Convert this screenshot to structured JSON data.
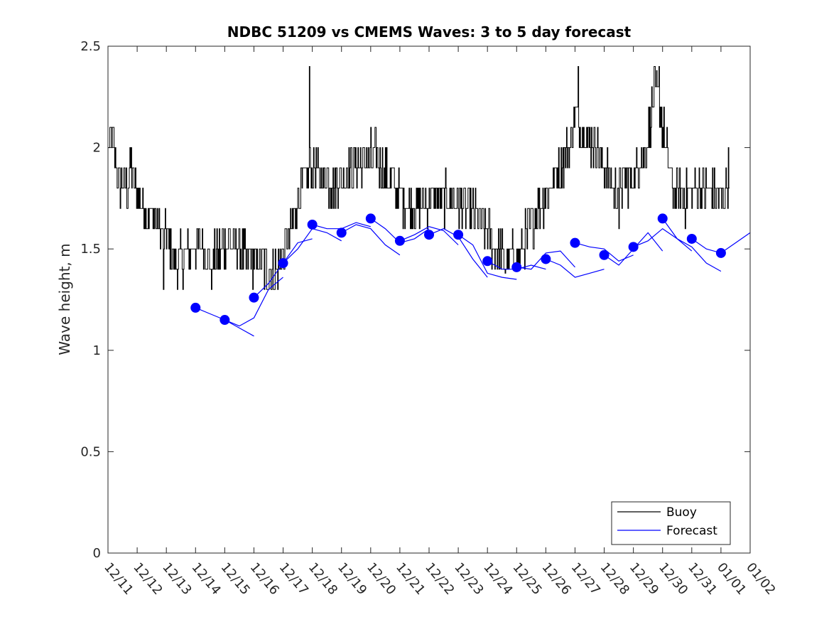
{
  "chart_data": {
    "type": "line",
    "title": "NDBC 51209 vs CMEMS Waves: 3 to 5 day forecast",
    "ylabel": "Wave height, m",
    "xlabel": "",
    "xlim": [
      0,
      22
    ],
    "ylim": [
      0,
      2.5
    ],
    "grid": false,
    "legend_position": "bottom-right",
    "yticks": [
      {
        "value": 0,
        "label": "0"
      },
      {
        "value": 0.5,
        "label": "0.5"
      },
      {
        "value": 1,
        "label": "1"
      },
      {
        "value": 1.5,
        "label": "1.5"
      },
      {
        "value": 2,
        "label": "2"
      },
      {
        "value": 2.5,
        "label": "2.5"
      }
    ],
    "xticks": [
      {
        "value": 0,
        "label": "12/11"
      },
      {
        "value": 1,
        "label": "12/12"
      },
      {
        "value": 2,
        "label": "12/13"
      },
      {
        "value": 3,
        "label": "12/14"
      },
      {
        "value": 4,
        "label": "12/15"
      },
      {
        "value": 5,
        "label": "12/16"
      },
      {
        "value": 6,
        "label": "12/17"
      },
      {
        "value": 7,
        "label": "12/18"
      },
      {
        "value": 8,
        "label": "12/19"
      },
      {
        "value": 9,
        "label": "12/20"
      },
      {
        "value": 10,
        "label": "12/21"
      },
      {
        "value": 11,
        "label": "12/22"
      },
      {
        "value": 12,
        "label": "12/23"
      },
      {
        "value": 13,
        "label": "12/24"
      },
      {
        "value": 14,
        "label": "12/25"
      },
      {
        "value": 15,
        "label": "12/26"
      },
      {
        "value": 16,
        "label": "12/27"
      },
      {
        "value": 17,
        "label": "12/28"
      },
      {
        "value": 18,
        "label": "12/29"
      },
      {
        "value": 19,
        "label": "12/30"
      },
      {
        "value": 20,
        "label": "12/31"
      },
      {
        "value": 21,
        "label": "01/01"
      },
      {
        "value": 22,
        "label": "01/02"
      }
    ],
    "series": [
      {
        "name": "Buoy",
        "color": "#000000",
        "style": "line",
        "anchors": [
          [
            0.0,
            2.0
          ],
          [
            0.15,
            2.05
          ],
          [
            0.35,
            1.85
          ],
          [
            0.6,
            1.78
          ],
          [
            0.8,
            1.9
          ],
          [
            1.0,
            1.78
          ],
          [
            1.3,
            1.7
          ],
          [
            1.6,
            1.65
          ],
          [
            2.0,
            1.55
          ],
          [
            2.3,
            1.45
          ],
          [
            2.6,
            1.45
          ],
          [
            2.9,
            1.5
          ],
          [
            3.2,
            1.55
          ],
          [
            3.5,
            1.45
          ],
          [
            3.8,
            1.48
          ],
          [
            4.1,
            1.55
          ],
          [
            4.4,
            1.5
          ],
          [
            4.7,
            1.45
          ],
          [
            5.0,
            1.45
          ],
          [
            5.3,
            1.42
          ],
          [
            5.55,
            1.38
          ],
          [
            5.8,
            1.4
          ],
          [
            6.0,
            1.45
          ],
          [
            6.2,
            1.55
          ],
          [
            6.5,
            1.75
          ],
          [
            6.8,
            1.85
          ],
          [
            7.1,
            1.9
          ],
          [
            7.4,
            1.85
          ],
          [
            7.7,
            1.82
          ],
          [
            8.0,
            1.85
          ],
          [
            8.3,
            1.9
          ],
          [
            8.6,
            1.92
          ],
          [
            8.9,
            1.95
          ],
          [
            9.2,
            1.95
          ],
          [
            9.5,
            1.88
          ],
          [
            9.8,
            1.8
          ],
          [
            10.1,
            1.75
          ],
          [
            10.4,
            1.72
          ],
          [
            10.8,
            1.72
          ],
          [
            11.2,
            1.75
          ],
          [
            11.5,
            1.75
          ],
          [
            11.8,
            1.75
          ],
          [
            12.1,
            1.72
          ],
          [
            12.5,
            1.68
          ],
          [
            12.8,
            1.62
          ],
          [
            13.1,
            1.55
          ],
          [
            13.4,
            1.48
          ],
          [
            13.7,
            1.45
          ],
          [
            14.0,
            1.45
          ],
          [
            14.3,
            1.55
          ],
          [
            14.6,
            1.65
          ],
          [
            14.9,
            1.75
          ],
          [
            15.2,
            1.82
          ],
          [
            15.5,
            1.9
          ],
          [
            15.8,
            2.0
          ],
          [
            16.0,
            2.15
          ],
          [
            16.2,
            2.12
          ],
          [
            16.4,
            2.05
          ],
          [
            16.7,
            2.02
          ],
          [
            17.0,
            1.9
          ],
          [
            17.3,
            1.8
          ],
          [
            17.6,
            1.82
          ],
          [
            17.9,
            1.85
          ],
          [
            18.2,
            1.92
          ],
          [
            18.5,
            2.05
          ],
          [
            18.7,
            2.25
          ],
          [
            18.9,
            2.2
          ],
          [
            19.1,
            2.0
          ],
          [
            19.3,
            1.82
          ],
          [
            19.6,
            1.75
          ],
          [
            19.9,
            1.75
          ],
          [
            20.2,
            1.8
          ],
          [
            20.5,
            1.78
          ],
          [
            20.8,
            1.75
          ],
          [
            21.0,
            1.75
          ],
          [
            21.3,
            1.88
          ]
        ],
        "spikes": [
          [
            6.9,
            2.4
          ],
          [
            16.1,
            2.4
          ],
          [
            18.72,
            2.4
          ],
          [
            18.88,
            2.4
          ],
          [
            18.8,
            2.38
          ],
          [
            5.45,
            1.3
          ],
          [
            1.9,
            1.3
          ],
          [
            3.55,
            1.3
          ],
          [
            17.5,
            1.6
          ],
          [
            13.6,
            1.38
          ]
        ]
      },
      {
        "name": "Forecast",
        "color": "#0000ff",
        "style": "line",
        "segments": [
          [
            [
              3.0,
              1.21
            ],
            [
              3.5,
              1.18
            ],
            [
              4.0,
              1.15
            ],
            [
              4.5,
              1.11
            ],
            [
              5.0,
              1.07
            ]
          ],
          [
            [
              4.0,
              1.15
            ],
            [
              4.5,
              1.12
            ],
            [
              5.0,
              1.16
            ],
            [
              5.5,
              1.3
            ],
            [
              6.0,
              1.36
            ]
          ],
          [
            [
              5.0,
              1.26
            ],
            [
              5.5,
              1.33
            ],
            [
              6.0,
              1.43
            ],
            [
              6.5,
              1.53
            ],
            [
              7.0,
              1.55
            ]
          ],
          [
            [
              6.0,
              1.43
            ],
            [
              6.5,
              1.5
            ],
            [
              7.0,
              1.6
            ],
            [
              7.5,
              1.58
            ],
            [
              8.0,
              1.54
            ]
          ],
          [
            [
              7.0,
              1.62
            ],
            [
              7.5,
              1.6
            ],
            [
              8.0,
              1.6
            ],
            [
              8.5,
              1.63
            ],
            [
              9.0,
              1.61
            ]
          ],
          [
            [
              8.0,
              1.58
            ],
            [
              8.5,
              1.62
            ],
            [
              9.0,
              1.6
            ],
            [
              9.5,
              1.52
            ],
            [
              10.0,
              1.47
            ]
          ],
          [
            [
              9.0,
              1.65
            ],
            [
              9.5,
              1.6
            ],
            [
              10.0,
              1.53
            ],
            [
              10.5,
              1.55
            ],
            [
              11.0,
              1.6
            ]
          ],
          [
            [
              10.0,
              1.54
            ],
            [
              10.5,
              1.57
            ],
            [
              11.0,
              1.61
            ],
            [
              11.5,
              1.59
            ],
            [
              12.0,
              1.52
            ]
          ],
          [
            [
              11.0,
              1.57
            ],
            [
              11.5,
              1.6
            ],
            [
              12.0,
              1.56
            ],
            [
              12.5,
              1.45
            ],
            [
              13.0,
              1.36
            ]
          ],
          [
            [
              12.0,
              1.57
            ],
            [
              12.5,
              1.52
            ],
            [
              13.0,
              1.38
            ],
            [
              13.5,
              1.36
            ],
            [
              14.0,
              1.35
            ]
          ],
          [
            [
              13.0,
              1.44
            ],
            [
              13.5,
              1.4
            ],
            [
              14.0,
              1.4
            ],
            [
              14.5,
              1.42
            ],
            [
              15.0,
              1.4
            ]
          ],
          [
            [
              14.0,
              1.41
            ],
            [
              14.5,
              1.4
            ],
            [
              15.0,
              1.48
            ],
            [
              15.5,
              1.49
            ],
            [
              16.0,
              1.41
            ]
          ],
          [
            [
              15.0,
              1.45
            ],
            [
              15.5,
              1.42
            ],
            [
              16.0,
              1.36
            ],
            [
              16.5,
              1.38
            ],
            [
              17.0,
              1.4
            ]
          ],
          [
            [
              16.0,
              1.53
            ],
            [
              16.5,
              1.51
            ],
            [
              17.0,
              1.5
            ],
            [
              17.5,
              1.44
            ],
            [
              18.0,
              1.47
            ]
          ],
          [
            [
              17.0,
              1.47
            ],
            [
              17.5,
              1.42
            ],
            [
              18.0,
              1.5
            ],
            [
              18.5,
              1.58
            ],
            [
              19.0,
              1.49
            ]
          ],
          [
            [
              18.0,
              1.51
            ],
            [
              18.5,
              1.54
            ],
            [
              19.0,
              1.6
            ],
            [
              19.5,
              1.55
            ],
            [
              20.0,
              1.49
            ]
          ],
          [
            [
              19.0,
              1.65
            ],
            [
              19.5,
              1.55
            ],
            [
              20.0,
              1.51
            ],
            [
              20.5,
              1.43
            ],
            [
              21.0,
              1.39
            ]
          ],
          [
            [
              20.0,
              1.55
            ],
            [
              20.5,
              1.5
            ],
            [
              21.0,
              1.48
            ],
            [
              21.5,
              1.53
            ],
            [
              22.0,
              1.58
            ]
          ]
        ],
        "markers": [
          [
            3.0,
            1.21
          ],
          [
            4.0,
            1.15
          ],
          [
            5.0,
            1.26
          ],
          [
            6.0,
            1.43
          ],
          [
            7.0,
            1.62
          ],
          [
            8.0,
            1.58
          ],
          [
            9.0,
            1.65
          ],
          [
            10.0,
            1.54
          ],
          [
            11.0,
            1.57
          ],
          [
            12.0,
            1.57
          ],
          [
            13.0,
            1.44
          ],
          [
            14.0,
            1.41
          ],
          [
            15.0,
            1.45
          ],
          [
            16.0,
            1.53
          ],
          [
            17.0,
            1.47
          ],
          [
            18.0,
            1.51
          ],
          [
            19.0,
            1.65
          ],
          [
            20.0,
            1.55
          ],
          [
            21.0,
            1.48
          ]
        ]
      }
    ]
  }
}
